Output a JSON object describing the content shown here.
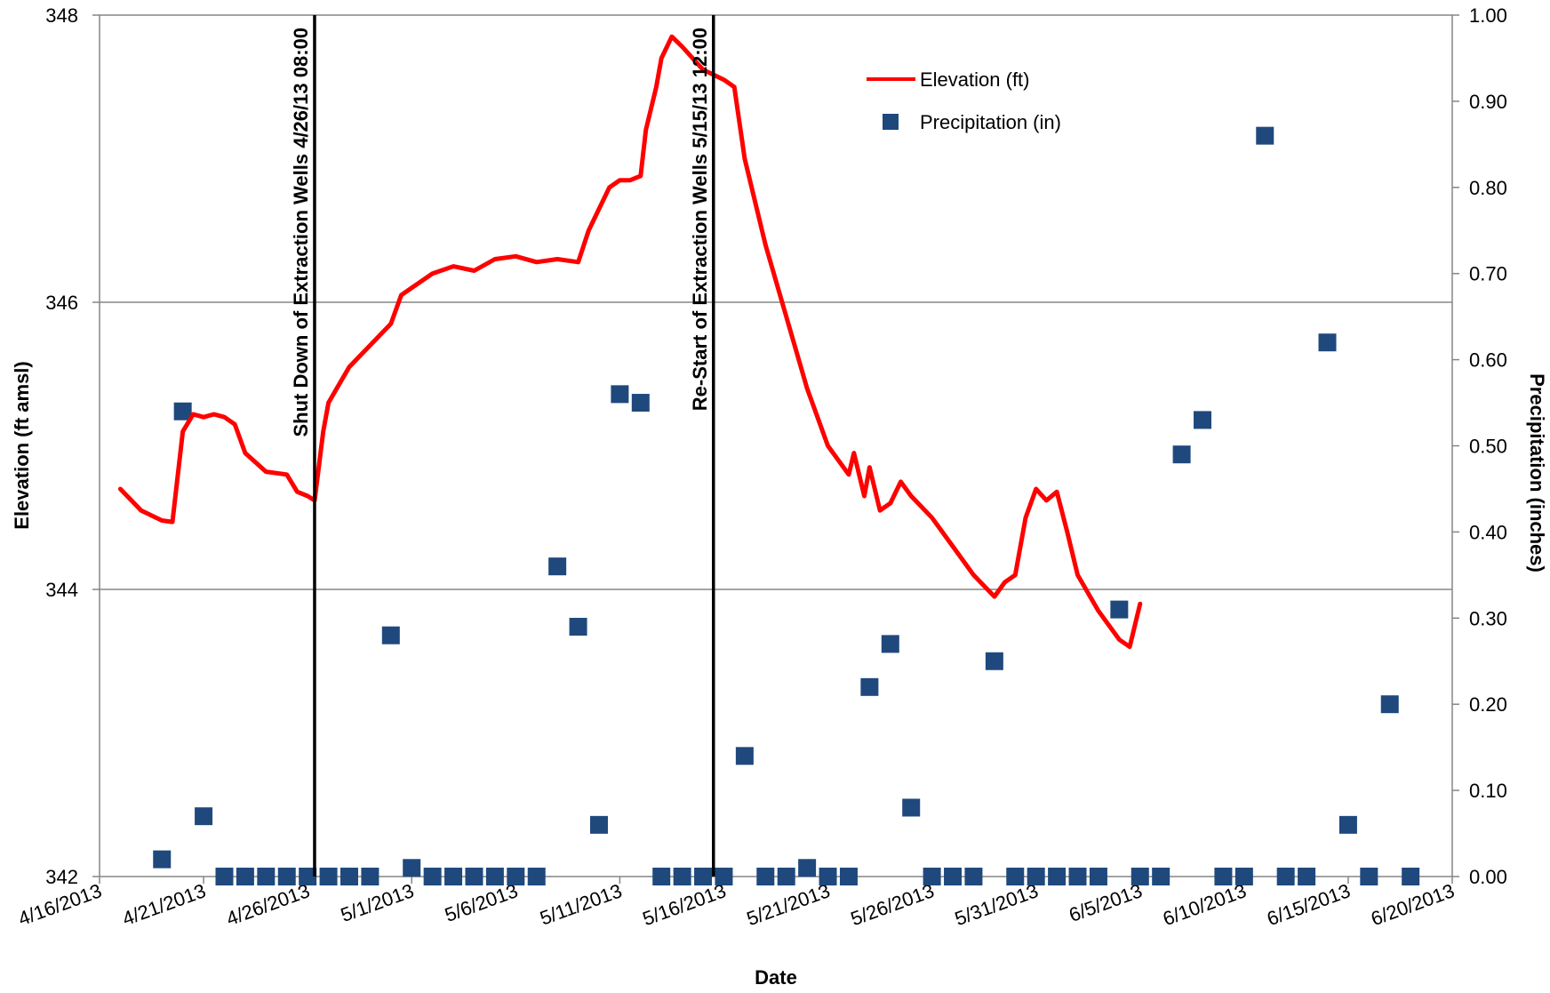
{
  "chart_data": {
    "type": "line+scatter",
    "xlabel": "Date",
    "ylabel_left": "Elevation (ft amsl)",
    "ylabel_right": "Precipitation (inches)",
    "x_ticks": [
      "4/16/2013",
      "4/21/2013",
      "4/26/2013",
      "5/1/2013",
      "5/6/2013",
      "5/11/2013",
      "5/16/2013",
      "5/21/2013",
      "5/26/2013",
      "5/31/2013",
      "6/5/2013",
      "6/10/2013",
      "6/15/2013",
      "6/20/2013"
    ],
    "xlim": [
      "2013-04-16",
      "2013-06-20"
    ],
    "y_left_ticks": [
      "342",
      "344",
      "346",
      "348"
    ],
    "y_left_lim": [
      342,
      348
    ],
    "y_right_ticks": [
      "0.00",
      "0.10",
      "0.20",
      "0.30",
      "0.40",
      "0.50",
      "0.60",
      "0.70",
      "0.80",
      "0.90",
      "1.00"
    ],
    "y_right_lim": [
      0,
      1
    ],
    "grid": "horizontal",
    "legend_position": "top-right",
    "series": [
      {
        "name": "Elevation (ft)",
        "color": "#ff0000",
        "axis": "left",
        "points": [
          [
            "2013-04-17",
            344.7
          ],
          [
            "2013-04-18",
            344.55
          ],
          [
            "2013-04-19",
            344.48
          ],
          [
            "2013-04-19 12:00",
            344.47
          ],
          [
            "2013-04-20",
            345.1
          ],
          [
            "2013-04-20 12:00",
            345.22
          ],
          [
            "2013-04-21",
            345.2
          ],
          [
            "2013-04-21 12:00",
            345.22
          ],
          [
            "2013-04-22",
            345.2
          ],
          [
            "2013-04-22 12:00",
            345.15
          ],
          [
            "2013-04-23",
            344.95
          ],
          [
            "2013-04-24",
            344.82
          ],
          [
            "2013-04-25",
            344.8
          ],
          [
            "2013-04-25 12:00",
            344.68
          ],
          [
            "2013-04-26",
            344.65
          ],
          [
            "2013-04-26 08:00",
            344.62
          ],
          [
            "2013-04-26 18:00",
            345.1
          ],
          [
            "2013-04-27",
            345.3
          ],
          [
            "2013-04-28",
            345.55
          ],
          [
            "2013-04-29",
            345.7
          ],
          [
            "2013-04-30",
            345.85
          ],
          [
            "2013-04-30 12:00",
            346.05
          ],
          [
            "2013-05-01",
            346.1
          ],
          [
            "2013-05-02",
            346.2
          ],
          [
            "2013-05-03",
            346.25
          ],
          [
            "2013-05-04",
            346.22
          ],
          [
            "2013-05-05",
            346.3
          ],
          [
            "2013-05-06",
            346.32
          ],
          [
            "2013-05-07",
            346.28
          ],
          [
            "2013-05-08",
            346.3
          ],
          [
            "2013-05-09",
            346.28
          ],
          [
            "2013-05-09 12:00",
            346.5
          ],
          [
            "2013-05-10",
            346.65
          ],
          [
            "2013-05-10 12:00",
            346.8
          ],
          [
            "2013-05-11",
            346.85
          ],
          [
            "2013-05-11 12:00",
            346.85
          ],
          [
            "2013-05-12",
            346.88
          ],
          [
            "2013-05-12 06:00",
            347.2
          ],
          [
            "2013-05-12 18:00",
            347.5
          ],
          [
            "2013-05-13",
            347.7
          ],
          [
            "2013-05-13 12:00",
            347.85
          ],
          [
            "2013-05-14",
            347.78
          ],
          [
            "2013-05-15",
            347.62
          ],
          [
            "2013-05-16",
            347.55
          ],
          [
            "2013-05-16 12:00",
            347.5
          ],
          [
            "2013-05-17",
            347.0
          ],
          [
            "2013-05-18",
            346.4
          ],
          [
            "2013-05-19",
            345.9
          ],
          [
            "2013-05-20",
            345.4
          ],
          [
            "2013-05-21",
            345.0
          ],
          [
            "2013-05-22",
            344.8
          ],
          [
            "2013-05-22 06:00",
            344.95
          ],
          [
            "2013-05-22 18:00",
            344.65
          ],
          [
            "2013-05-23",
            344.85
          ],
          [
            "2013-05-23 12:00",
            344.55
          ],
          [
            "2013-05-24",
            344.6
          ],
          [
            "2013-05-24 12:00",
            344.75
          ],
          [
            "2013-05-25",
            344.65
          ],
          [
            "2013-05-26",
            344.5
          ],
          [
            "2013-05-27",
            344.3
          ],
          [
            "2013-05-28",
            344.1
          ],
          [
            "2013-05-29",
            343.95
          ],
          [
            "2013-05-29 12:00",
            344.05
          ],
          [
            "2013-05-30",
            344.1
          ],
          [
            "2013-05-30 12:00",
            344.5
          ],
          [
            "2013-05-31",
            344.7
          ],
          [
            "2013-05-31 12:00",
            344.62
          ],
          [
            "2013-06-01",
            344.68
          ],
          [
            "2013-06-01 12:00",
            344.4
          ],
          [
            "2013-06-02",
            344.1
          ],
          [
            "2013-06-03",
            343.85
          ],
          [
            "2013-06-04",
            343.65
          ],
          [
            "2013-06-04 12:00",
            343.6
          ],
          [
            "2013-06-05",
            343.9
          ]
        ]
      },
      {
        "name": "Precipitation (in)",
        "color": "#1f497d",
        "axis": "right",
        "points": [
          [
            "2013-04-19",
            0.02
          ],
          [
            "2013-04-20",
            0.54
          ],
          [
            "2013-04-21",
            0.07
          ],
          [
            "2013-04-22",
            0.0
          ],
          [
            "2013-04-23",
            0.0
          ],
          [
            "2013-04-24",
            0.0
          ],
          [
            "2013-04-25",
            0.0
          ],
          [
            "2013-04-26",
            0.0
          ],
          [
            "2013-04-27",
            0.0
          ],
          [
            "2013-04-28",
            0.0
          ],
          [
            "2013-04-29",
            0.0
          ],
          [
            "2013-04-30",
            0.28
          ],
          [
            "2013-05-01",
            0.01
          ],
          [
            "2013-05-02",
            0.0
          ],
          [
            "2013-05-03",
            0.0
          ],
          [
            "2013-05-04",
            0.0
          ],
          [
            "2013-05-05",
            0.0
          ],
          [
            "2013-05-06",
            0.0
          ],
          [
            "2013-05-07",
            0.0
          ],
          [
            "2013-05-08",
            0.36
          ],
          [
            "2013-05-09",
            0.29
          ],
          [
            "2013-05-10",
            0.06
          ],
          [
            "2013-05-11",
            0.56
          ],
          [
            "2013-05-12",
            0.55
          ],
          [
            "2013-05-13",
            0.0
          ],
          [
            "2013-05-14",
            0.0
          ],
          [
            "2013-05-15",
            0.0
          ],
          [
            "2013-05-16",
            0.0
          ],
          [
            "2013-05-17",
            0.14
          ],
          [
            "2013-05-18",
            0.0
          ],
          [
            "2013-05-19",
            0.0
          ],
          [
            "2013-05-20",
            0.01
          ],
          [
            "2013-05-21",
            0.0
          ],
          [
            "2013-05-22",
            0.0
          ],
          [
            "2013-05-23",
            0.22
          ],
          [
            "2013-05-24",
            0.27
          ],
          [
            "2013-05-25",
            0.08
          ],
          [
            "2013-05-26",
            0.0
          ],
          [
            "2013-05-27",
            0.0
          ],
          [
            "2013-05-28",
            0.0
          ],
          [
            "2013-05-29",
            0.25
          ],
          [
            "2013-05-30",
            0.0
          ],
          [
            "2013-05-31",
            0.0
          ],
          [
            "2013-06-01",
            0.0
          ],
          [
            "2013-06-02",
            0.0
          ],
          [
            "2013-06-03",
            0.0
          ],
          [
            "2013-06-04",
            0.31
          ],
          [
            "2013-06-05",
            0.0
          ],
          [
            "2013-06-06",
            0.0
          ],
          [
            "2013-06-07",
            0.49
          ],
          [
            "2013-06-08",
            0.53
          ],
          [
            "2013-06-09",
            0.0
          ],
          [
            "2013-06-10",
            0.0
          ],
          [
            "2013-06-11",
            0.86
          ],
          [
            "2013-06-12",
            0.0
          ],
          [
            "2013-06-13",
            0.0
          ],
          [
            "2013-06-14",
            0.62
          ],
          [
            "2013-06-15",
            0.06
          ],
          [
            "2013-06-16",
            0.0
          ],
          [
            "2013-06-17",
            0.2
          ],
          [
            "2013-06-18",
            0.0
          ]
        ]
      }
    ],
    "annotations": [
      {
        "date": "2013-04-26 08:00",
        "text": "Shut Down of Extraction Wells 4/26/13 08:00"
      },
      {
        "date": "2013-05-15 12:00",
        "text": "Re-Start of Extraction Wells 5/15/13 12:00"
      }
    ]
  }
}
